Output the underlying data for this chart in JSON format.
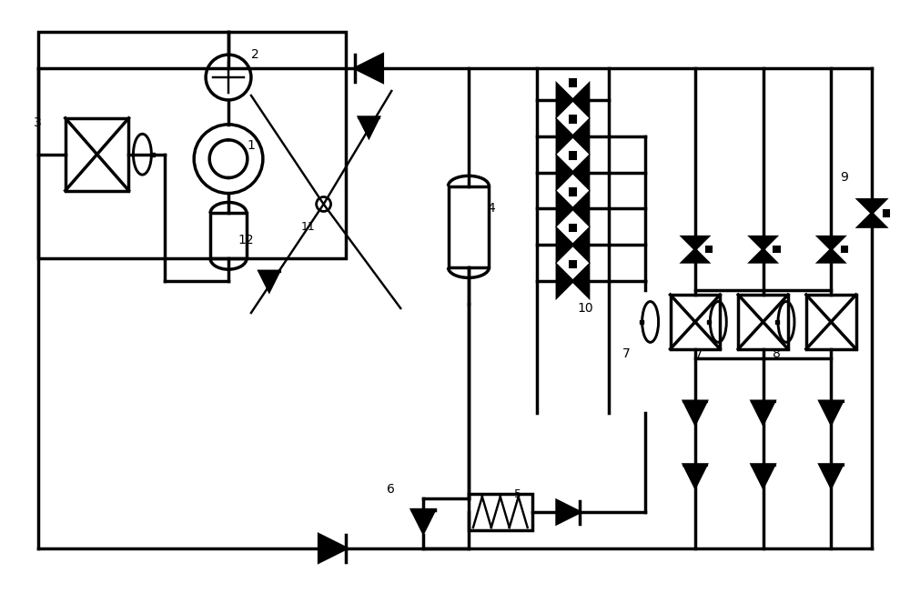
{
  "background": "#ffffff",
  "line_color": "#000000",
  "line_width": 2.5,
  "figsize": [
    10.0,
    6.74
  ],
  "dpi": 100
}
